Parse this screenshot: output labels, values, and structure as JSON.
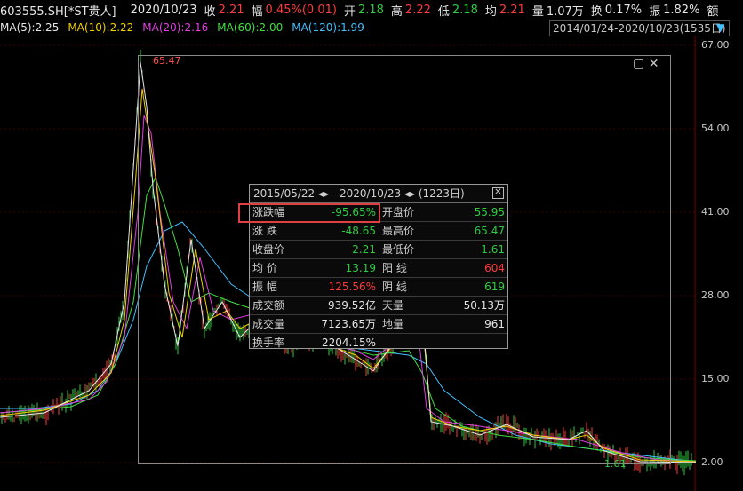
{
  "header": {
    "code": "603555.SH[*ST贵人]",
    "date": "2020/10/23",
    "close_label": "收",
    "close_value": "2.21",
    "chg_label": "幅",
    "chg_value": "0.45%(0.01)",
    "open_label": "开",
    "open_value": "2.18",
    "high_label": "高",
    "high_value": "2.22",
    "low_label": "低",
    "low_value": "2.18",
    "avg_label": "均",
    "avg_value": "2.21",
    "vol_label": "量",
    "vol_value": "1.07万",
    "turn_label": "换",
    "turn_value": "0.17%",
    "amp_label": "振",
    "amp_value": "1.82%",
    "amt_label": "额"
  },
  "ma": {
    "ma5": "MA(5):2.25",
    "ma10": "MA(10):2.22",
    "ma20": "MA(20):2.16",
    "ma60": "MA(60):2.00",
    "ma120": "MA(120):1.99"
  },
  "range_text": "2014/01/24-2020/10/23(1535日)",
  "y_axis": [
    "67.00",
    "54.00",
    "41.00",
    "28.00",
    "15.00",
    "2.00"
  ],
  "hi_label": "65.47",
  "lo_label": "1.61",
  "stats": {
    "header": "2015/05/22 ◂▸ - 2020/10/23 ◂▸ (1223日)",
    "rows": [
      {
        "k1": "涨跌幅",
        "v1": "-95.65%",
        "k2": "开盘价",
        "v2": "55.95"
      },
      {
        "k1": "涨    跌",
        "v1": "-48.65",
        "k2": "最高价",
        "v2": "65.47"
      },
      {
        "k1": "收盘价",
        "v1": "2.21",
        "k2": "最低价",
        "v2": "1.61"
      },
      {
        "k1": "均    价",
        "v1": "13.19",
        "k2": "阳    线",
        "v2": "604"
      },
      {
        "k1": "振    幅",
        "v1": "125.56%",
        "k2": "阴    线",
        "v2": "619"
      },
      {
        "k1": "成交额",
        "v1": "939.52亿",
        "k2": "天量",
        "v2": "50.13万"
      },
      {
        "k1": "成交量",
        "v1": "7123.65万",
        "k2": "地量",
        "v2": "961"
      },
      {
        "k1": "换手率",
        "v1": "2204.15%",
        "k2": "",
        "v2": ""
      }
    ]
  },
  "colors": {
    "up": "#ff3b3b",
    "down": "#2ecc40",
    "ma5": "#e6e6e6",
    "ma10": "#f0d000",
    "ma20": "#e040e0",
    "ma60": "#40e040",
    "ma120": "#40c0ff"
  }
}
